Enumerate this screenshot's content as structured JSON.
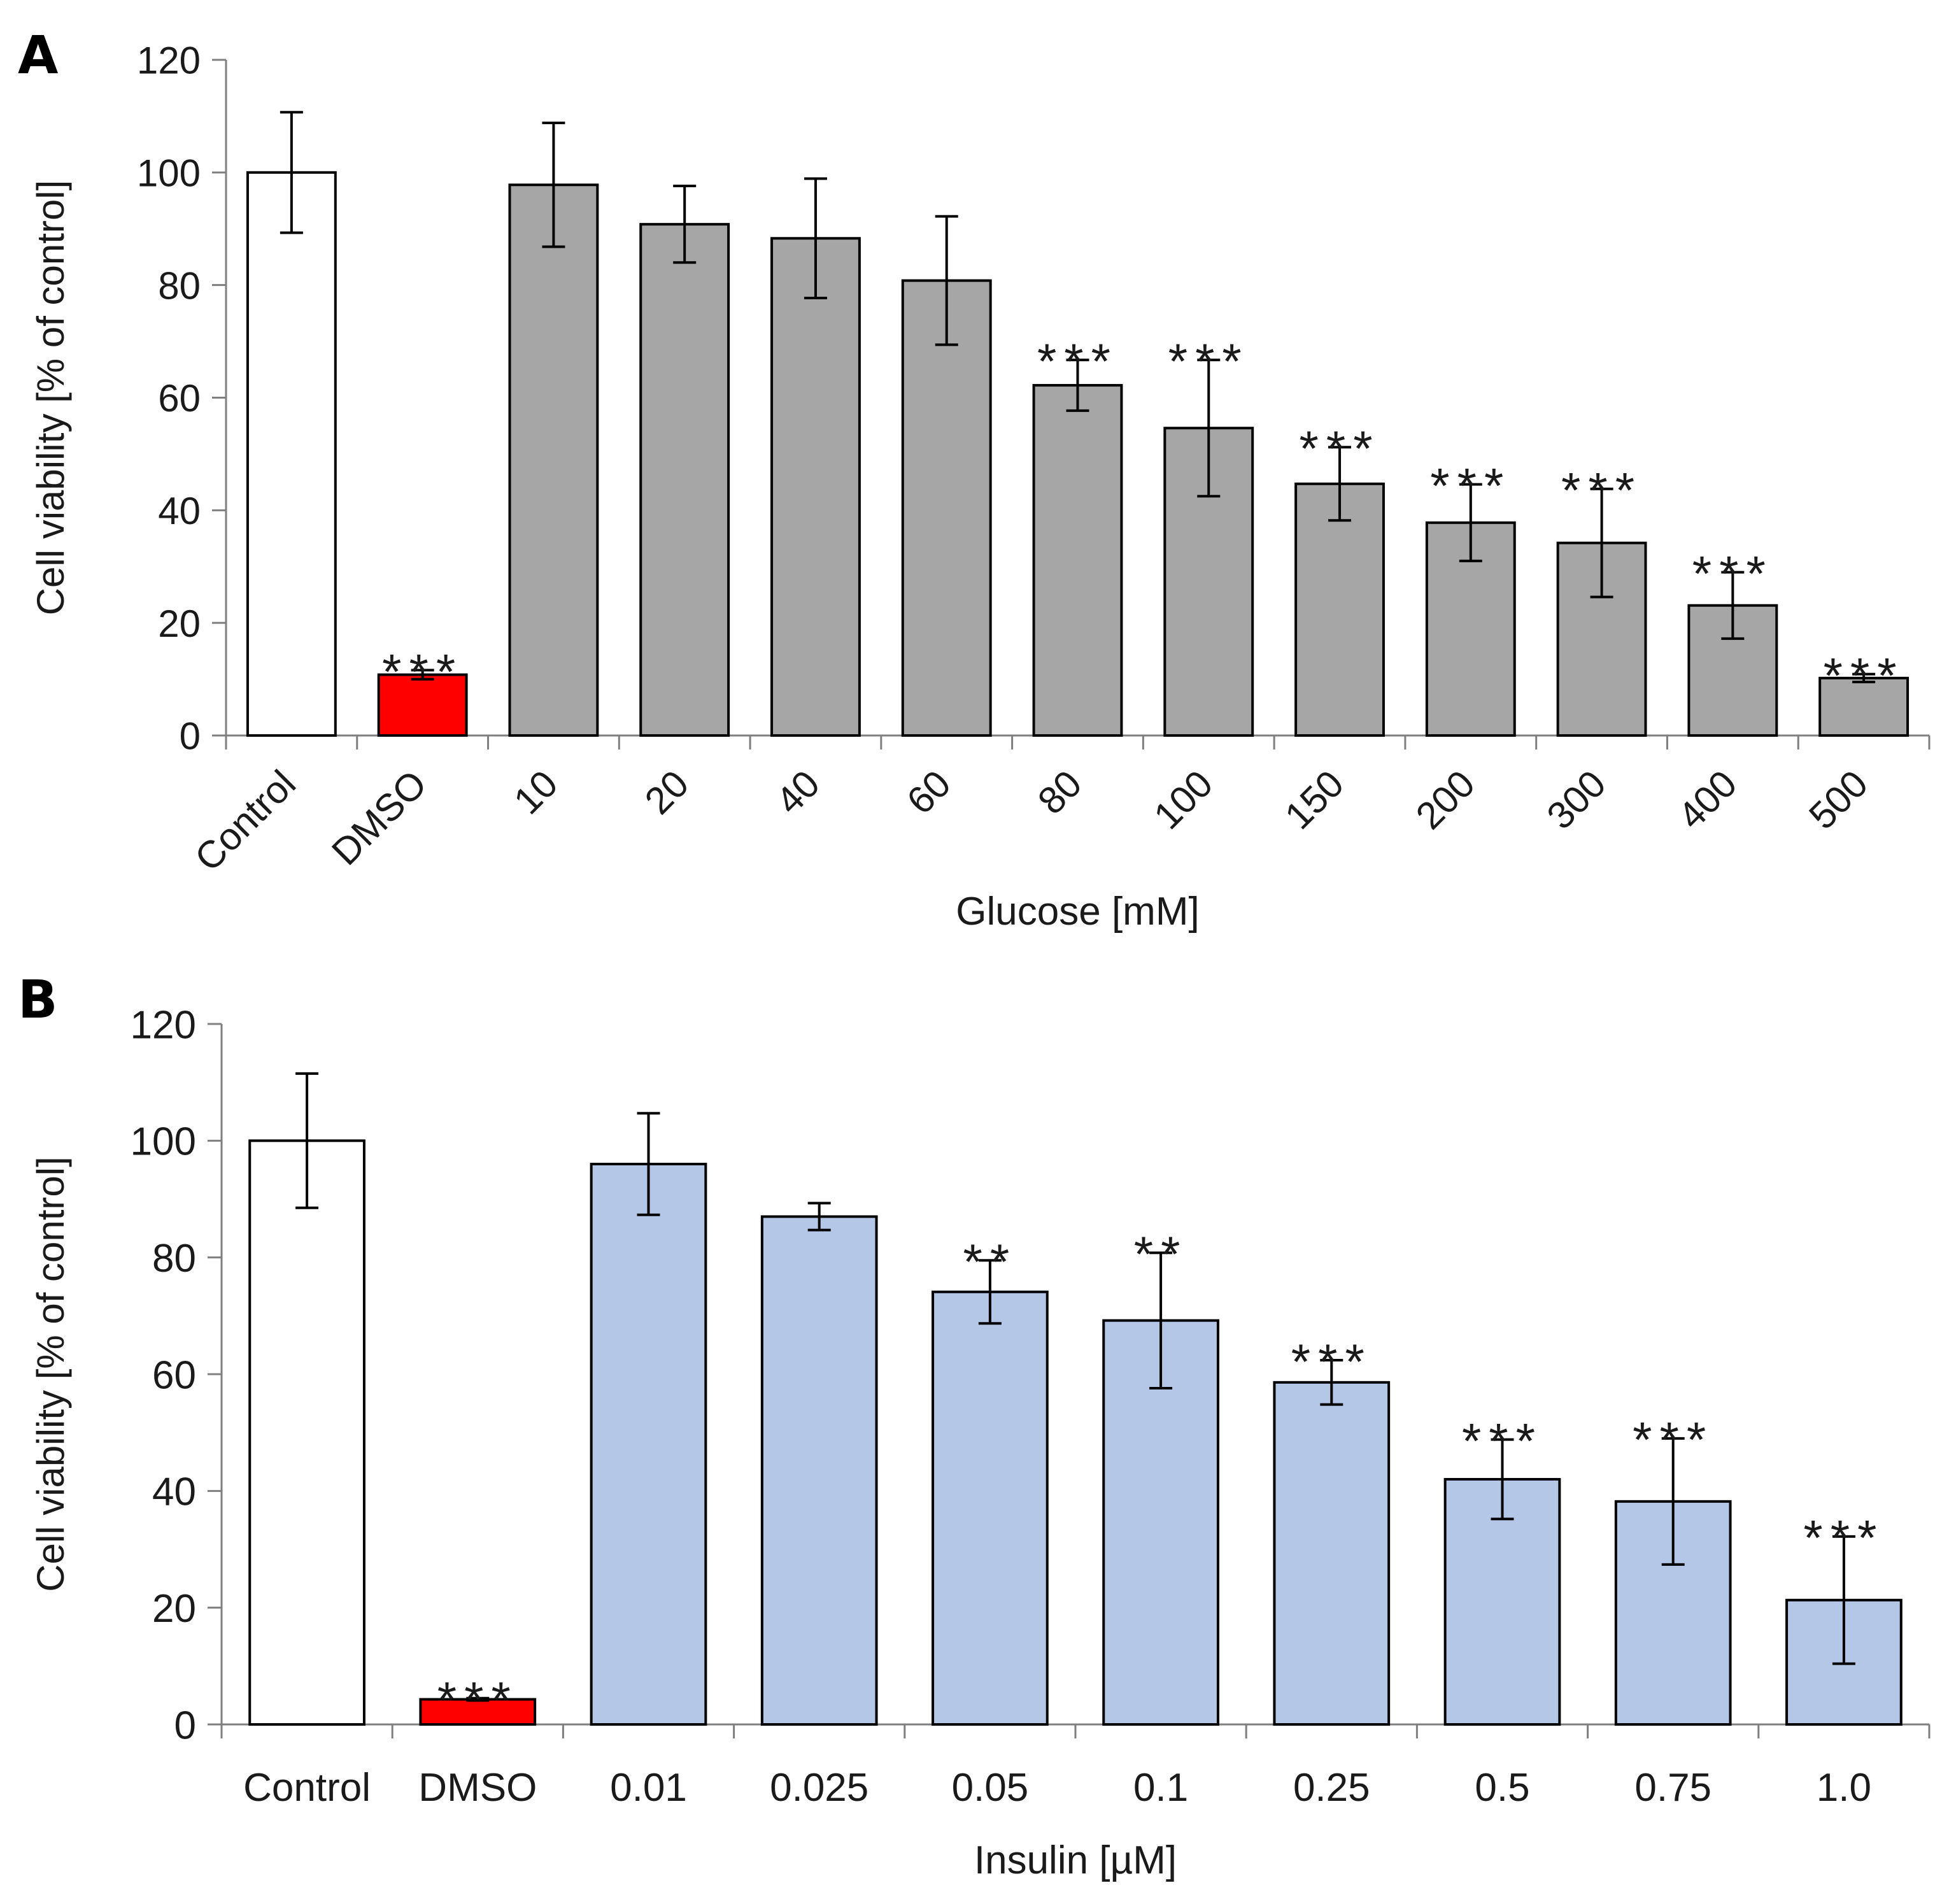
{
  "chart_data": [
    {
      "panel_label": "A",
      "type": "bar",
      "xlabel": "Glucose [mM]",
      "ylabel": "Cell viability [% of control]",
      "ylim": [
        0,
        120
      ],
      "yticks": [
        0,
        20,
        40,
        60,
        80,
        100,
        120
      ],
      "tick_label_rotation": "-45deg",
      "categories": [
        "Control",
        "DMSO",
        "10",
        "20",
        "40",
        "60",
        "80",
        "100",
        "150",
        "200",
        "300",
        "400",
        "500"
      ],
      "values": [
        100,
        10.8,
        97.8,
        90.8,
        88.3,
        80.8,
        62.2,
        54.6,
        44.7,
        37.8,
        34.2,
        23.1,
        10.2
      ],
      "errors": [
        10.7,
        0.8,
        11.0,
        6.8,
        10.6,
        11.4,
        4.5,
        12.1,
        6.5,
        6.8,
        9.6,
        5.9,
        0.7
      ],
      "significance": [
        "",
        "***",
        "",
        "",
        "",
        "",
        "***",
        "***",
        "***",
        "***",
        "***",
        "***",
        "***"
      ],
      "colors": [
        "#ffffff",
        "#ff0000",
        "#a6a6a6",
        "#a6a6a6",
        "#a6a6a6",
        "#a6a6a6",
        "#a6a6a6",
        "#a6a6a6",
        "#a6a6a6",
        "#a6a6a6",
        "#a6a6a6",
        "#a6a6a6",
        "#a6a6a6"
      ]
    },
    {
      "panel_label": "B",
      "type": "bar",
      "xlabel": "Insulin [µM]",
      "ylabel": "Cell viability [% of control]",
      "ylim": [
        0,
        120
      ],
      "yticks": [
        0,
        20,
        40,
        60,
        80,
        100,
        120
      ],
      "tick_label_rotation": "0deg",
      "categories": [
        "Control",
        "DMSO",
        "0.01",
        "0.025",
        "0.05",
        "0.1",
        "0.25",
        "0.5",
        "0.75",
        "1.0"
      ],
      "values": [
        100,
        4.3,
        96.0,
        87.0,
        74.1,
        69.2,
        58.6,
        42.0,
        38.2,
        21.3
      ],
      "errors": [
        11.5,
        0.2,
        8.7,
        2.3,
        5.4,
        11.6,
        3.8,
        6.8,
        10.8,
        10.9
      ],
      "significance": [
        "",
        "***",
        "",
        "",
        "**",
        "**",
        "***",
        "***",
        "***",
        "***"
      ],
      "colors": [
        "#ffffff",
        "#ff0000",
        "#b4c7e7",
        "#b4c7e7",
        "#b4c7e7",
        "#b4c7e7",
        "#b4c7e7",
        "#b4c7e7",
        "#b4c7e7",
        "#b4c7e7"
      ]
    }
  ]
}
